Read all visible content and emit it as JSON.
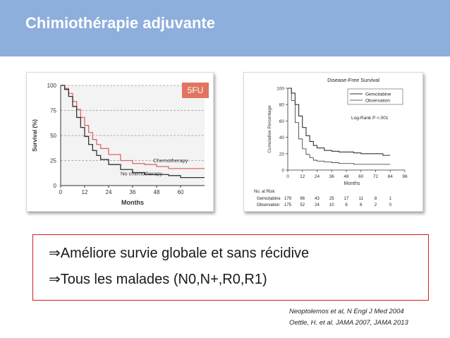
{
  "slide": {
    "title": "Chimiothérapie adjuvante",
    "badge": "5FU",
    "bullets": [
      "⇒Améliore survie globale et sans récidive",
      "⇒Tous les malades (N0,N+,R0,R1)"
    ],
    "references": [
      "Neoptolemos et al, N Engl J Med 2004",
      "Oettle, H. et al. JAMA 2007, JAMA 2013"
    ]
  },
  "colors": {
    "header_bg": "#8EAEDC",
    "chemo_line": "#E06666",
    "no_chemo_line": "#333333",
    "badge_bg": "#E07560",
    "box_border": "#d42020"
  },
  "chart_data": [
    {
      "type": "line",
      "title": "",
      "xlabel": "Months",
      "ylabel": "Survival (%)",
      "xlim": [
        0,
        72
      ],
      "ylim": [
        0,
        100
      ],
      "xticks": [
        "0",
        "12",
        "24",
        "36",
        "48",
        "60"
      ],
      "yticks": [
        "0",
        "25",
        "50",
        "75",
        "100"
      ],
      "series": [
        {
          "name": "Chemotherapy",
          "color": "#E06666",
          "x": [
            0,
            2,
            4,
            6,
            8,
            10,
            12,
            14,
            16,
            18,
            20,
            24,
            30,
            36,
            42,
            48,
            54,
            60,
            66,
            72
          ],
          "y": [
            100,
            97,
            92,
            84,
            76,
            68,
            60,
            53,
            46,
            41,
            37,
            31,
            25,
            22,
            21,
            19,
            17,
            17,
            17,
            17
          ]
        },
        {
          "name": "No chemotherapy",
          "color": "#333333",
          "x": [
            0,
            2,
            4,
            6,
            8,
            10,
            12,
            14,
            16,
            18,
            20,
            24,
            30,
            36,
            42,
            48,
            54,
            60,
            66,
            72
          ],
          "y": [
            100,
            96,
            89,
            79,
            68,
            58,
            49,
            41,
            35,
            30,
            26,
            21,
            16,
            13,
            11,
            11,
            10,
            8,
            8,
            8
          ]
        }
      ]
    },
    {
      "type": "line",
      "title": "Disease-Free Survival",
      "xlabel": "Months",
      "ylabel": "Cumulative Percentage",
      "xlim": [
        0,
        96
      ],
      "ylim": [
        0,
        100
      ],
      "xticks": [
        "0",
        "12",
        "24",
        "36",
        "48",
        "60",
        "72",
        "84",
        "96"
      ],
      "yticks": [
        "0",
        "20",
        "40",
        "60",
        "80",
        "100"
      ],
      "annotation": "Log-Rank P <.001",
      "legend_position": "top-right",
      "series": [
        {
          "name": "Gemcitabine",
          "color": "#333333",
          "x": [
            0,
            3,
            6,
            9,
            12,
            15,
            18,
            21,
            24,
            30,
            36,
            42,
            48,
            54,
            60,
            66,
            72,
            78,
            84
          ],
          "y": [
            100,
            94,
            80,
            66,
            52,
            42,
            35,
            30,
            27,
            24,
            23,
            22,
            22,
            21,
            20,
            20,
            20,
            18,
            18
          ]
        },
        {
          "name": "Observation",
          "color": "#333333",
          "x": [
            0,
            3,
            6,
            9,
            12,
            15,
            18,
            21,
            24,
            30,
            36,
            42,
            48,
            54,
            60,
            66,
            72,
            78,
            84
          ],
          "y": [
            100,
            85,
            58,
            38,
            26,
            19,
            15,
            12,
            11,
            10,
            9,
            8,
            8,
            7,
            7,
            7,
            7,
            7,
            7
          ]
        }
      ],
      "risk_table": {
        "header": "No. at Risk",
        "rows": [
          {
            "label": "Gemcitabine",
            "values": [
              "179",
              "96",
              "43",
              "25",
              "17",
              "11",
              "8",
              "1"
            ]
          },
          {
            "label": "Observation",
            "values": [
              "175",
              "52",
              "24",
              "10",
              "6",
              "6",
              "2",
              "0"
            ]
          }
        ]
      }
    }
  ]
}
